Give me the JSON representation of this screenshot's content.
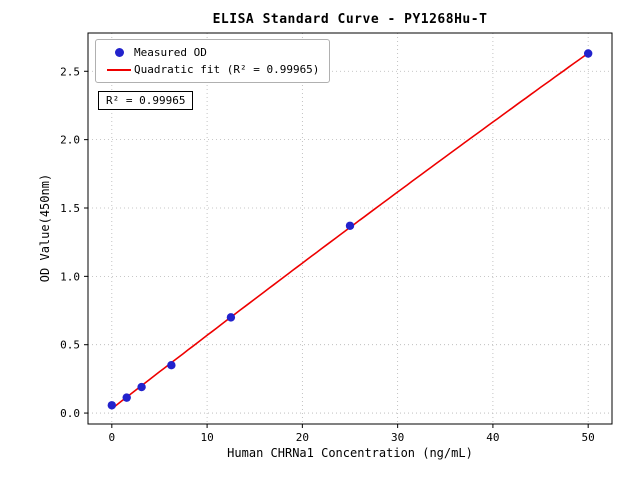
{
  "chart_data": {
    "type": "scatter",
    "title": "ELISA Standard Curve - PY1268Hu-T",
    "xlabel": "Human CHRNa1 Concentration (ng/mL)",
    "ylabel": "OD Value(450nm)",
    "xlim": [
      -2.5,
      52.5
    ],
    "ylim": [
      -0.08,
      2.78
    ],
    "xticks": [
      0,
      10,
      20,
      30,
      40,
      50
    ],
    "yticks": [
      0,
      0.5,
      1,
      1.5,
      2,
      2.5
    ],
    "grid": true,
    "grid_style": "dotted",
    "legend_position": "upper left",
    "annotation": "R² = 0.99965",
    "r_squared": 0.99965,
    "series": [
      {
        "name": "Measured OD",
        "type": "scatter",
        "color": "#2222cc",
        "points": [
          [
            0,
            0.057
          ],
          [
            1.563,
            0.113
          ],
          [
            3.125,
            0.19
          ],
          [
            6.25,
            0.35
          ],
          [
            12.5,
            0.7
          ],
          [
            25,
            1.37
          ],
          [
            50,
            2.63
          ]
        ]
      },
      {
        "name": "Quadratic fit (R² = 0.99965)",
        "type": "quadratic-fit",
        "color": "#ee0000",
        "x_range": [
          0,
          50
        ]
      }
    ]
  },
  "colors": {
    "frame": "#000000",
    "grid": "#b5b5b5",
    "background": "#ffffff"
  }
}
